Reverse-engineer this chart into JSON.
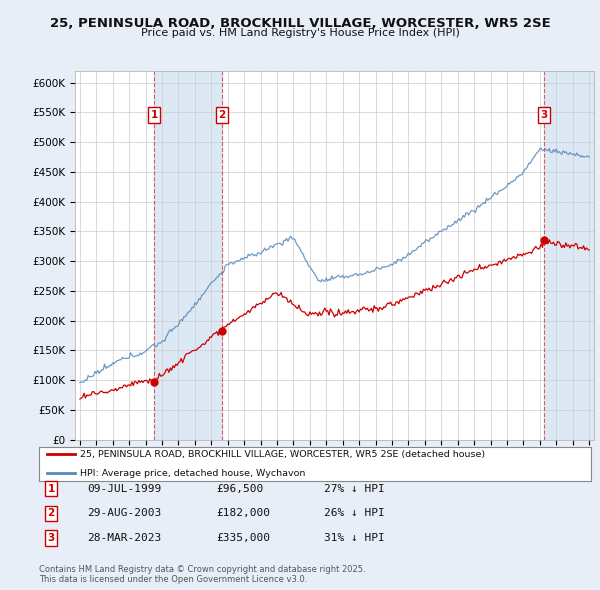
{
  "title1": "25, PENINSULA ROAD, BROCKHILL VILLAGE, WORCESTER, WR5 2SE",
  "title2": "Price paid vs. HM Land Registry's House Price Index (HPI)",
  "ylabel_vals": [
    "£0",
    "£50K",
    "£100K",
    "£150K",
    "£200K",
    "£250K",
    "£300K",
    "£350K",
    "£400K",
    "£450K",
    "£500K",
    "£550K",
    "£600K"
  ],
  "ylim": [
    0,
    620000
  ],
  "xlim_start": 1994.7,
  "xlim_end": 2026.3,
  "bg_color": "#e8eef8",
  "plot_bg_color": "#ffffff",
  "grid_color": "#cccccc",
  "hpi_color": "#5588bb",
  "price_color": "#cc0000",
  "legend_label_red": "25, PENINSULA ROAD, BROCKHILL VILLAGE, WORCESTER, WR5 2SE (detached house)",
  "legend_label_blue": "HPI: Average price, detached house, Wychavon",
  "sale1_date": "09-JUL-1999",
  "sale1_price": "£96,500",
  "sale1_pct": "27% ↓ HPI",
  "sale1_x": 1999.52,
  "sale1_y": 96500,
  "sale2_date": "29-AUG-2003",
  "sale2_price": "£182,000",
  "sale2_pct": "26% ↓ HPI",
  "sale2_x": 2003.66,
  "sale2_y": 182000,
  "sale3_date": "28-MAR-2023",
  "sale3_price": "£335,000",
  "sale3_pct": "31% ↓ HPI",
  "sale3_x": 2023.24,
  "sale3_y": 335000,
  "footnote": "Contains HM Land Registry data © Crown copyright and database right 2025.\nThis data is licensed under the Open Government Licence v3.0."
}
